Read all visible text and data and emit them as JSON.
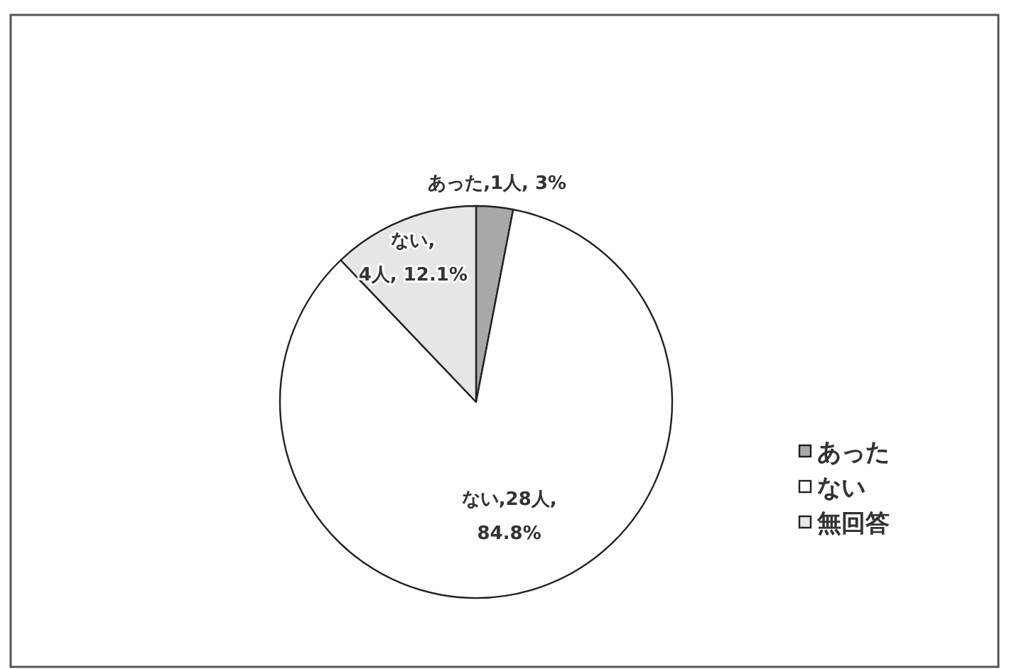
{
  "chart_data": {
    "type": "pie",
    "categories": [
      "あった",
      "ない",
      "無回答"
    ],
    "values": [
      1,
      28,
      4
    ],
    "value_labels": [
      "あった,1人, 3%",
      "ない,28人,\n84.8%",
      "ない,\n4人, 12.1%"
    ],
    "colors": [
      "#a8a8a8",
      "#ffffff",
      "#e6e6e6"
    ],
    "legend": "right"
  }
}
